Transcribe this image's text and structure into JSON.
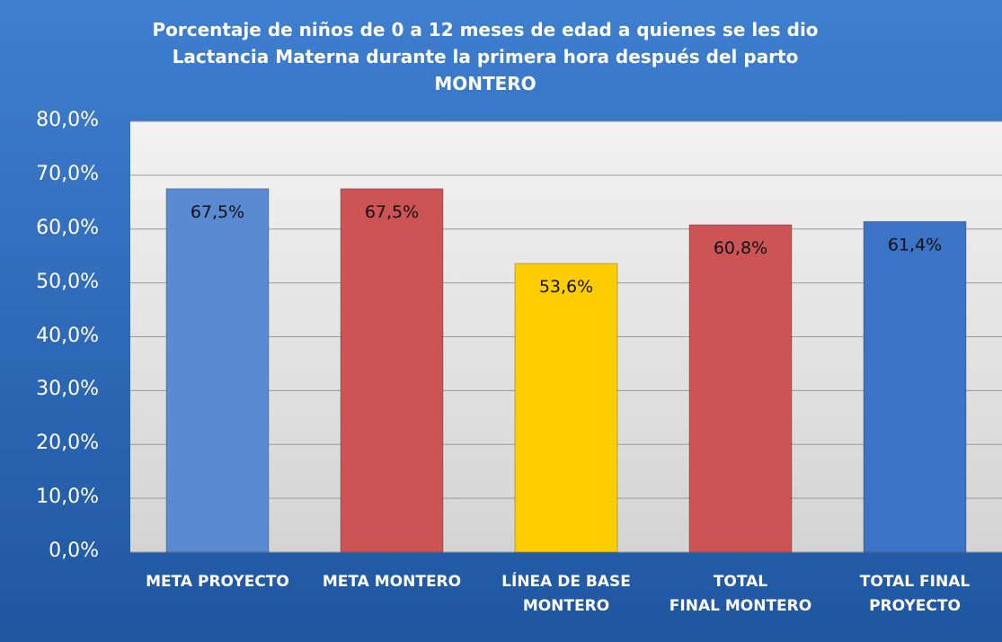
{
  "chart_data": {
    "type": "bar",
    "title": "Porcentaje de niños de 0 a 12 meses de edad a quienes se les dio\nLactancia Materna durante la primera hora después del parto\nMONTERO",
    "categories": [
      "META PROYECTO",
      "META MONTERO",
      "LÍNEA DE BASE\nMONTERO",
      "TOTAL\nFINAL MONTERO",
      "TOTAL FINAL\nPROYECTO"
    ],
    "values": [
      67.5,
      67.5,
      53.6,
      60.8,
      61.4
    ],
    "value_labels": [
      "67,5%",
      "67,5%",
      "53,6%",
      "60,8%",
      "61,4%"
    ],
    "colors": [
      "#5a8bd2",
      "#cd5454",
      "#ffcc00",
      "#cd5454",
      "#3b73c6"
    ],
    "ylim": [
      0,
      80
    ],
    "yticks": [
      {
        "value": 0,
        "label": "0,0%"
      },
      {
        "value": 10,
        "label": "10,0%"
      },
      {
        "value": 20,
        "label": "20,0%"
      },
      {
        "value": 30,
        "label": "30,0%"
      },
      {
        "value": 40,
        "label": "40,0%"
      },
      {
        "value": 50,
        "label": "50,0%"
      },
      {
        "value": 60,
        "label": "60,0%"
      },
      {
        "value": 70,
        "label": "70,0%"
      },
      {
        "value": 80,
        "label": "80,0%"
      }
    ],
    "grid": true
  }
}
